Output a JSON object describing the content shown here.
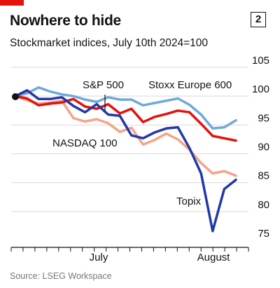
{
  "header": {
    "title": "Nowhere to hide",
    "chart_number": "2",
    "subtitle": "Stockmarket indices, July 10th 2024=100"
  },
  "footer": {
    "source": "Source: LSEG Workspace"
  },
  "colors": {
    "accent": "#e3120b",
    "sp500": "#e3120b",
    "stoxx": "#6fa8dc",
    "nasdaq": "#f4a488",
    "topix": "#2239a8",
    "grid": "#d9d9d9"
  },
  "chart_data": {
    "type": "line",
    "title": "Nowhere to hide",
    "subtitle": "Stockmarket indices, July 10th 2024=100",
    "x_labels": [
      "July",
      "August"
    ],
    "ylim": [
      75,
      105
    ],
    "yticks": [
      75,
      80,
      85,
      90,
      95,
      100,
      105
    ],
    "grid": true,
    "series": [
      {
        "name": "S&P 500",
        "color": "#e3120b",
        "values": [
          100,
          99.6,
          98.4,
          98.7,
          98.9,
          99.5,
          98.2,
          97.8,
          98.6,
          97.0,
          97.8,
          95.5,
          96.4,
          96.9,
          97.5,
          97.2,
          95.2,
          93.1,
          92.7,
          92.3
        ]
      },
      {
        "name": "Stoxx Europe 600",
        "color": "#6fa8dc",
        "values": [
          100,
          100.5,
          101.5,
          100.8,
          100.3,
          100.0,
          99.4,
          99.0,
          99.8,
          99.4,
          99.4,
          98.4,
          98.8,
          99.2,
          99.6,
          98.5,
          96.8,
          94.4,
          94.6,
          95.8
        ]
      },
      {
        "name": "NASDAQ 100",
        "color": "#f4a488",
        "values": [
          100,
          99.3,
          98.7,
          98.9,
          99.2,
          96.2,
          95.6,
          96.0,
          95.3,
          93.8,
          94.5,
          91.6,
          92.4,
          93.5,
          92.5,
          90.7,
          88.4,
          86.6,
          87.0,
          86.2
        ]
      },
      {
        "name": "Topix",
        "color": "#2239a8",
        "values": [
          100,
          101.0,
          99.5,
          99.5,
          99.8,
          98.3,
          97.2,
          98.6,
          96.8,
          96.6,
          93.2,
          92.7,
          93.7,
          94.4,
          94.6,
          91.0,
          86.6,
          76.6,
          83.9,
          85.5
        ]
      }
    ]
  }
}
